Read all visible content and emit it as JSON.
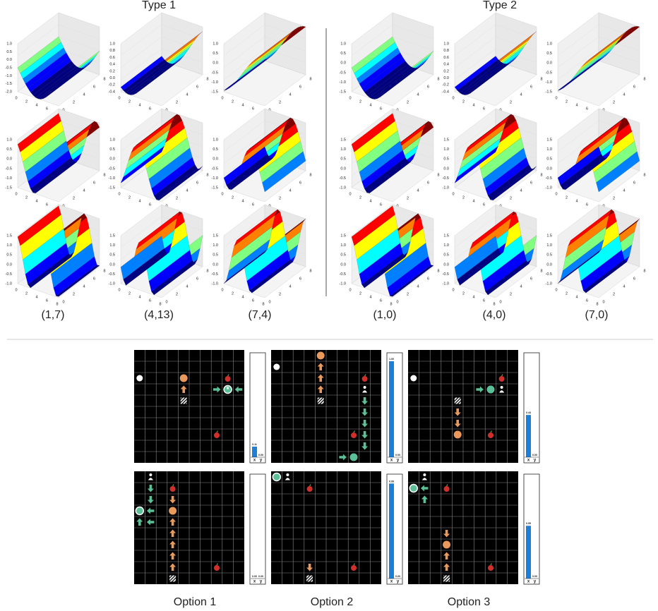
{
  "type1": {
    "title": "Type 1",
    "xticks": [
      "0",
      "2",
      "4",
      "6",
      "8"
    ],
    "plots": [
      {
        "zticks": [
          "1.0",
          "0.5",
          "0.0",
          "-0.5",
          "-1.0",
          "-1.5",
          "-2.0"
        ]
      },
      {
        "zticks": [
          "1.0",
          "0.8",
          "0.6",
          "0.4",
          "0.2",
          "0.0",
          "-0.2",
          "-0.4"
        ]
      },
      {
        "zticks": [
          "1.0",
          "0.5",
          "0.0",
          "-0.5",
          "-1.0",
          "-1.5"
        ]
      },
      {
        "zticks": [
          "1.0",
          "0.5",
          "0.0",
          "-0.5",
          "-1.0",
          "-1.5"
        ]
      },
      {
        "zticks": [
          "1.0",
          "0.5",
          "0.0",
          "-0.5",
          "-1.0",
          "-1.5"
        ]
      },
      {
        "zticks": [
          "1.0",
          "0.5",
          "0.0",
          "-0.5",
          "-1.0",
          "-1.5"
        ]
      },
      {
        "zticks": [
          "1.5",
          "1.0",
          "0.5",
          "0.0",
          "-0.5",
          "-1.0"
        ]
      },
      {
        "zticks": [
          "1.5",
          "1.0",
          "0.5",
          "0.0",
          "-0.5",
          "-1.0"
        ]
      },
      {
        "zticks": [
          "1.5",
          "1.0",
          "0.5",
          "0.0",
          "-0.5",
          "-1.0"
        ]
      }
    ],
    "labels": [
      "(1,7)",
      "(4,13)",
      "(7,4)"
    ]
  },
  "type2": {
    "title": "Type 2",
    "xticks": [
      "0",
      "2",
      "4",
      "6",
      "8"
    ],
    "plots": [
      {
        "zticks": [
          "1.0",
          "0.5",
          "0.0",
          "-0.5",
          "-1.0",
          "-1.5"
        ]
      },
      {
        "zticks": [
          "1.0",
          "0.8",
          "0.6",
          "0.4",
          "0.2",
          "0.0",
          "-0.2",
          "-0.4"
        ]
      },
      {
        "zticks": [
          "1.0",
          "0.5",
          "0.0",
          "-0.5",
          "-1.0",
          "-1.5"
        ]
      },
      {
        "zticks": [
          "1.5",
          "1.0",
          "0.5",
          "0.0",
          "-0.5",
          "-1.0"
        ]
      },
      {
        "zticks": [
          "1.5",
          "1.0",
          "0.5",
          "0.0",
          "-0.5",
          "-1.0"
        ]
      },
      {
        "zticks": [
          "1.5",
          "1.0",
          "0.5",
          "0.0",
          "-0.5",
          "-1.0"
        ]
      },
      {
        "zticks": [
          "1.5",
          "1.0",
          "0.5",
          "0.0",
          "-0.5",
          "-1.0"
        ]
      },
      {
        "zticks": [
          "1.5",
          "1.0",
          "0.5",
          "0.0",
          "-0.5",
          "-1.0"
        ]
      },
      {
        "zticks": [
          "1.5",
          "1.0",
          "0.5",
          "0.0",
          "-0.5",
          "-1.0"
        ]
      }
    ],
    "labels": [
      "(1,0)",
      "(4,0)",
      "(7,0)"
    ]
  },
  "bar_axis": [
    "x",
    "y"
  ],
  "options": [
    {
      "label": "Option 1",
      "panels": [
        {
          "values": [
            0.11,
            0
          ],
          "value_labels": [
            "0.11",
            "0.00"
          ]
        },
        {
          "values": [
            0,
            0
          ],
          "value_labels": [
            "0.00",
            "0.00"
          ]
        }
      ]
    },
    {
      "label": "Option 2",
      "panels": [
        {
          "values": [
            1,
            0
          ],
          "value_labels": [
            "1.00",
            "0.00"
          ]
        },
        {
          "values": [
            0.99,
            0
          ],
          "value_labels": [
            "0.99",
            "0.00"
          ]
        }
      ]
    },
    {
      "label": "Option 3",
      "panels": [
        {
          "values": [
            0.44,
            0
          ],
          "value_labels": [
            "0.44",
            "0.00"
          ]
        },
        {
          "values": [
            0.55,
            0
          ],
          "value_labels": [
            "0.55",
            "0.00"
          ]
        }
      ]
    }
  ]
}
